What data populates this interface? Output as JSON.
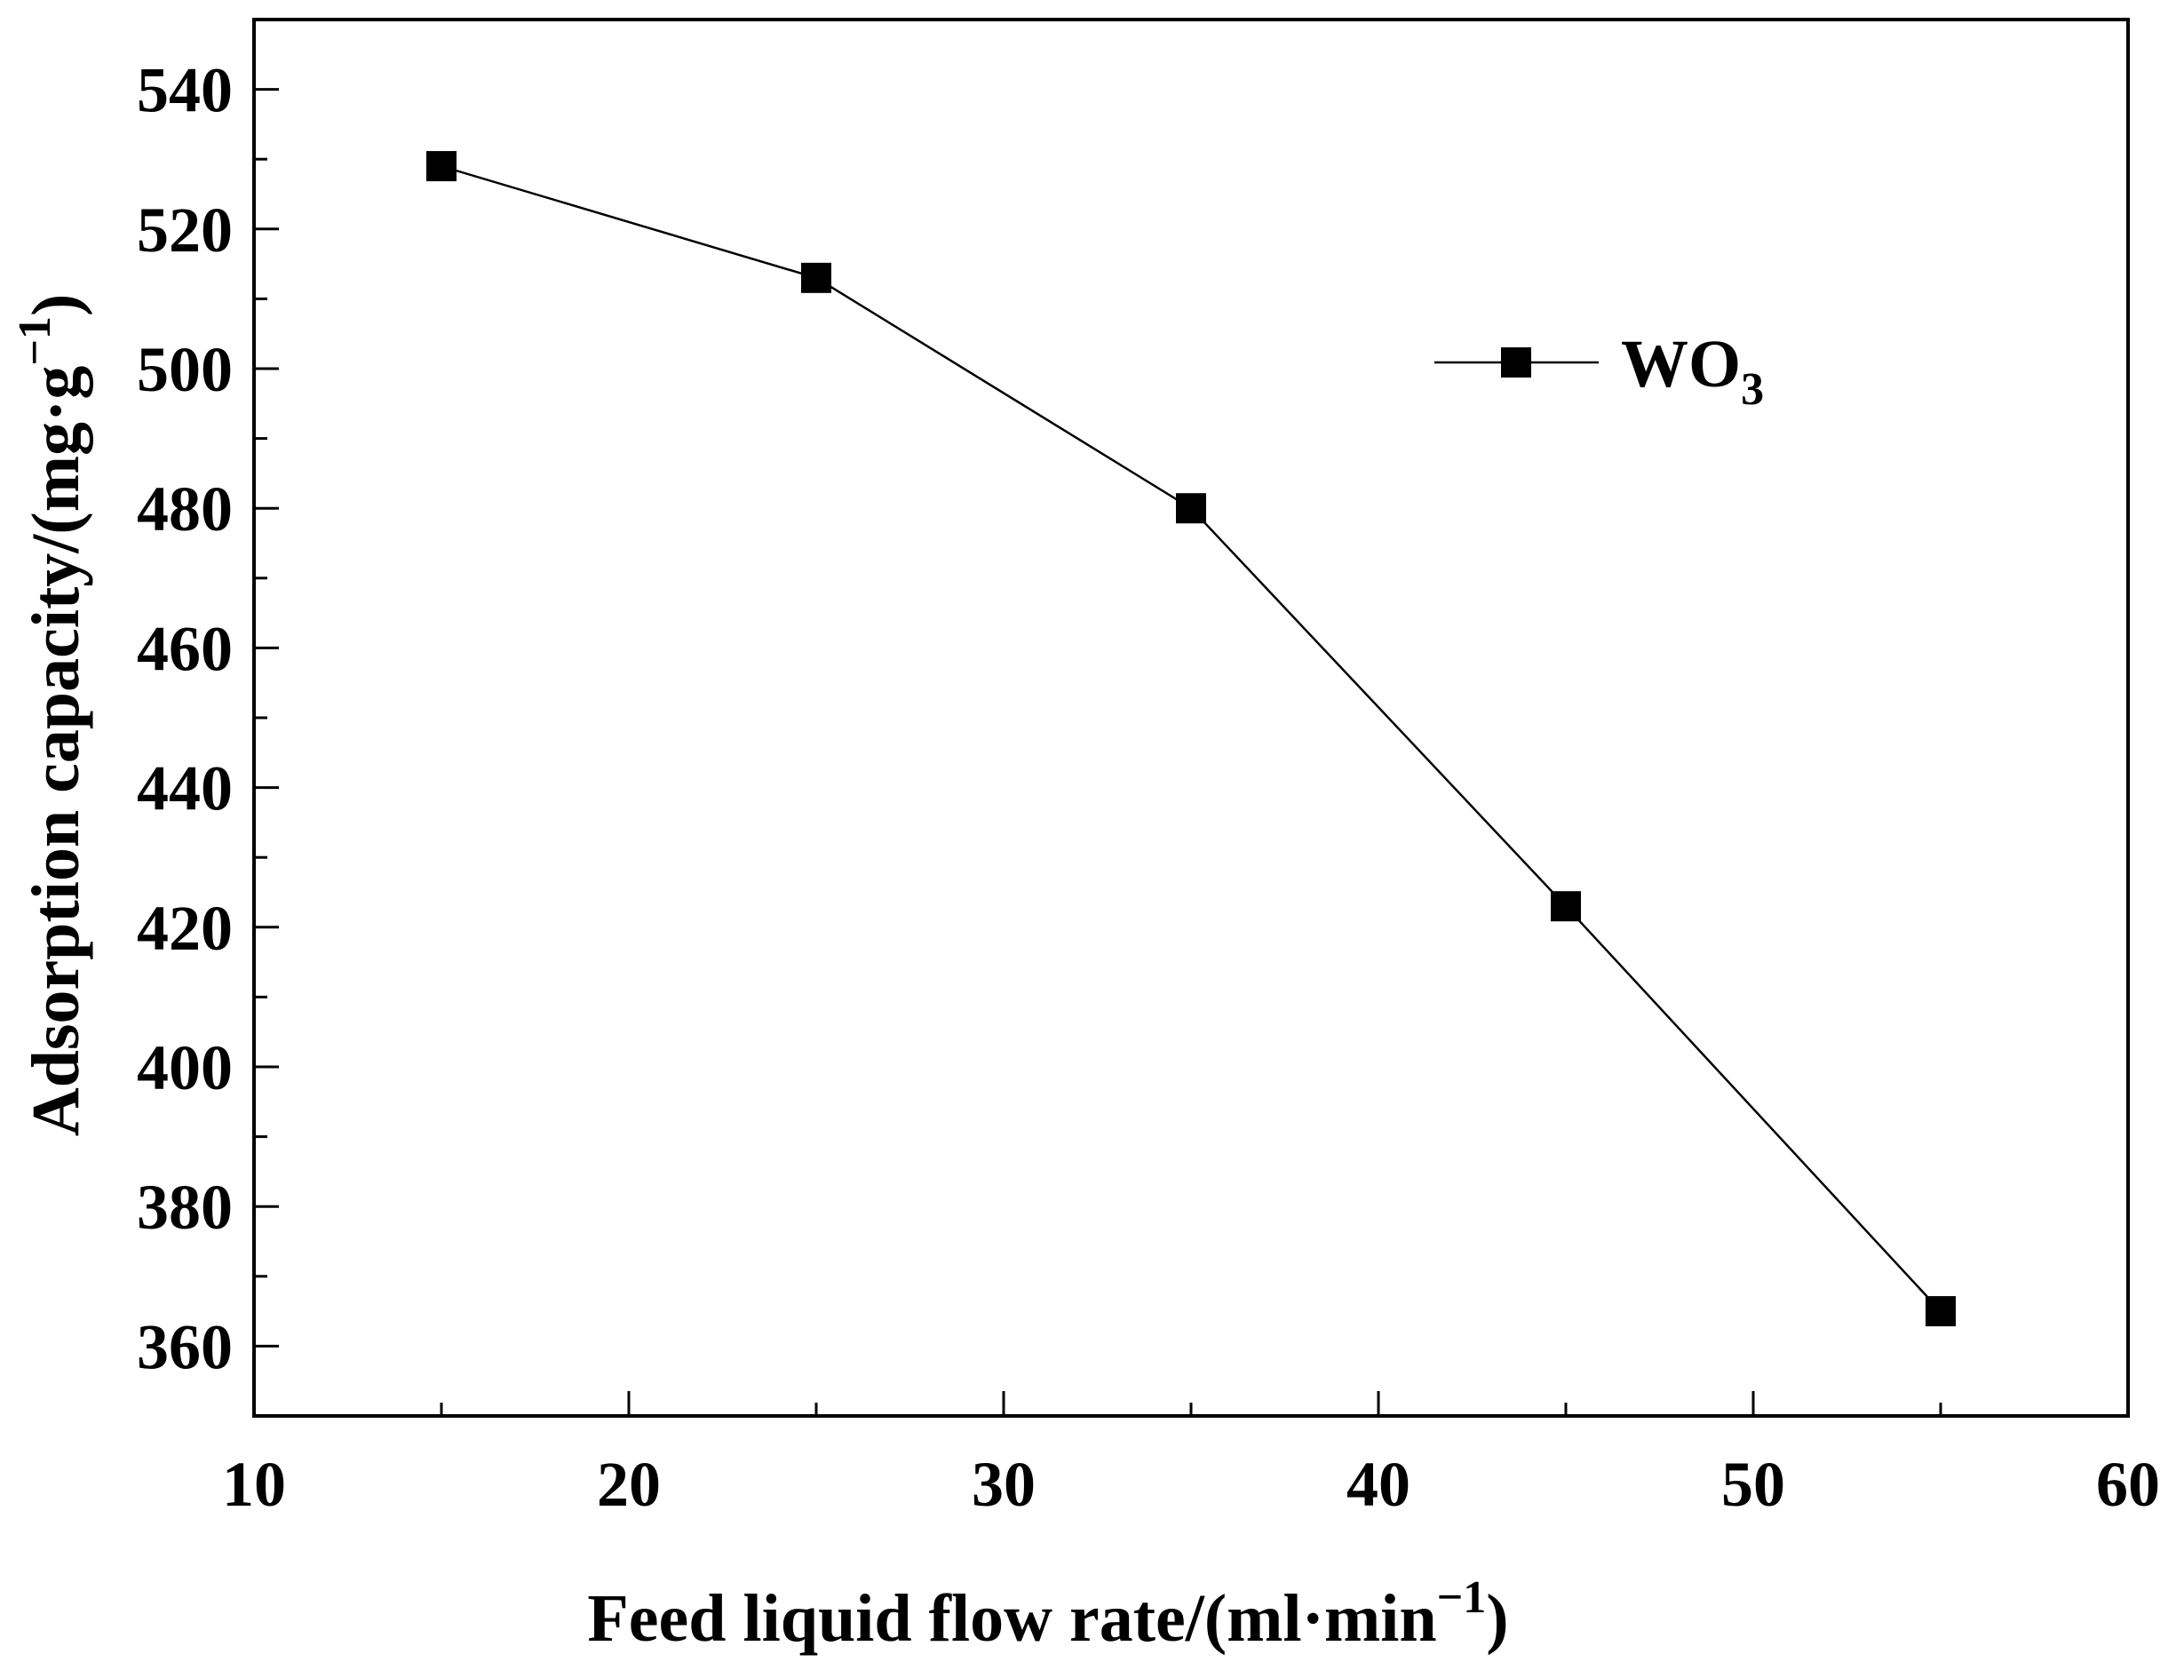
{
  "chart_data": {
    "type": "line",
    "title": "",
    "xlabel": "Feed liquid flow rate/(ml·min",
    "xlabel_sup": "−1",
    "xlabel_close": ")",
    "ylabel": "Adsorption capacity/(mg·g",
    "ylabel_sup": "−1",
    "ylabel_close": ")",
    "xlim": [
      10,
      60
    ],
    "ylim": [
      350,
      550
    ],
    "xticks": [
      10,
      20,
      30,
      40,
      50,
      60
    ],
    "yticks": [
      360,
      380,
      400,
      420,
      440,
      460,
      480,
      500,
      520,
      540
    ],
    "grid": false,
    "legend_position": "upper-right",
    "series": [
      {
        "name": "WO",
        "name_sub": "3",
        "marker": "square",
        "color": "#000000",
        "x": [
          15,
          25,
          35,
          45,
          55
        ],
        "y": [
          529,
          513,
          480,
          423,
          365
        ]
      }
    ]
  }
}
